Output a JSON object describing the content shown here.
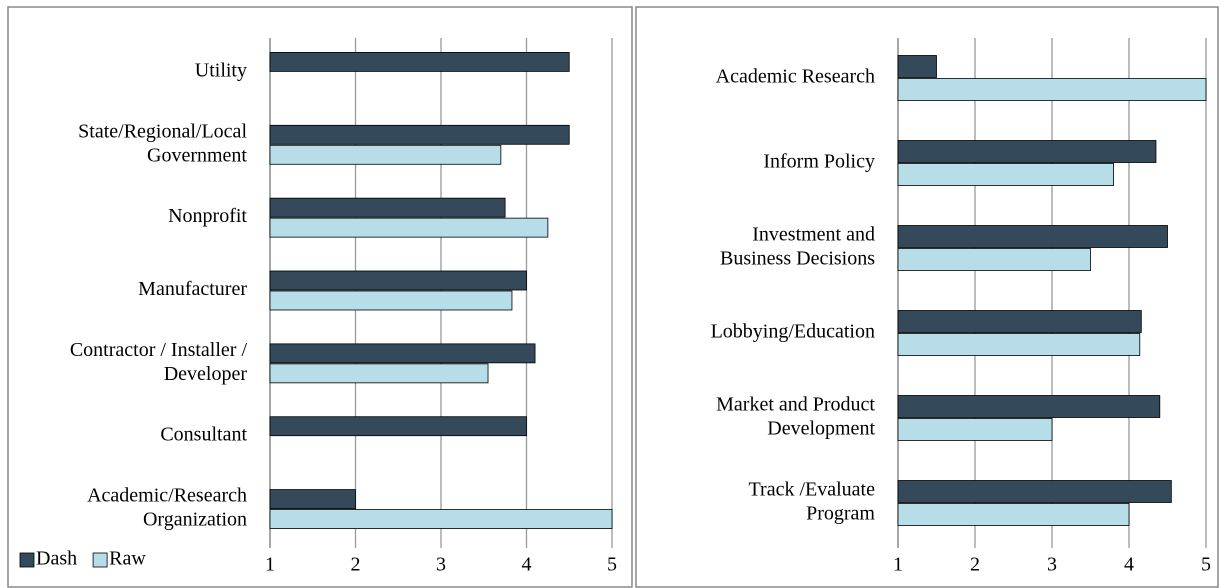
{
  "chart_data": [
    {
      "type": "hbar",
      "categories": [
        "Utility",
        "State/Regional/Local Government",
        "Nonprofit",
        "Manufacturer",
        "Contractor / Installer / Developer",
        "Consultant",
        "Academic/Research Organization"
      ],
      "series": [
        {
          "name": "Dash",
          "color": "#34495a",
          "values": [
            4.5,
            4.5,
            3.75,
            4.0,
            4.1,
            4.0,
            2.0
          ]
        },
        {
          "name": "Raw",
          "color": "#b7dde8",
          "values": [
            null,
            3.7,
            4.25,
            3.83,
            3.55,
            null,
            5.0
          ]
        }
      ],
      "xlim": [
        1,
        5
      ],
      "xticks": [
        1,
        2,
        3,
        4,
        5
      ],
      "grid": true,
      "legend": "bottom-left"
    },
    {
      "type": "hbar",
      "categories": [
        "Academic Research",
        "Inform Policy",
        "Investment and Business Decisions",
        "Lobbying/Education",
        "Market and Product Development",
        "Track /Evaluate Program"
      ],
      "series": [
        {
          "color": "#34495a",
          "values": [
            1.5,
            4.35,
            4.5,
            4.16,
            4.4,
            4.55
          ]
        },
        {
          "color": "#b7dde8",
          "values": [
            5.0,
            3.8,
            3.5,
            4.14,
            3.0,
            4.0
          ]
        }
      ],
      "xlim": [
        1,
        5
      ],
      "xticks": [
        1,
        2,
        3,
        4,
        5
      ],
      "grid": true
    }
  ]
}
